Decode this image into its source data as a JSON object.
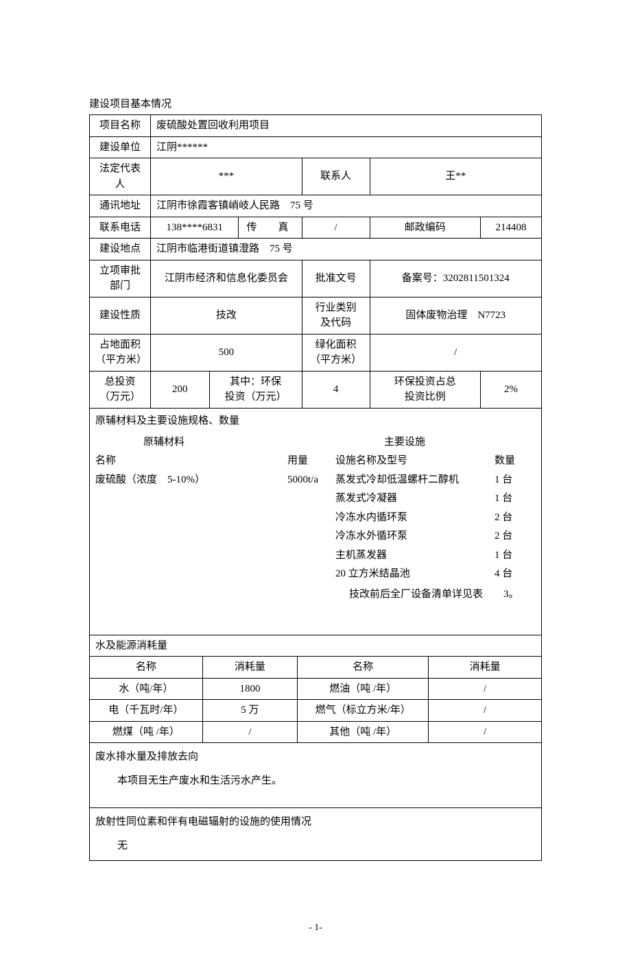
{
  "section_title": "建设项目基本情况",
  "rows": {
    "project_name_label": "项目名称",
    "project_name": "废硫酸处置回收利用项目",
    "builder_label": "建设单位",
    "builder": "江阴******",
    "legal_rep_label": "法定代表人",
    "legal_rep": "***",
    "contact_label": "联系人",
    "contact": "王**",
    "address_label": "通讯地址",
    "address": "江阴市徐霞客镇峭岐人民路　75 号",
    "phone_label": "联系电话",
    "phone": "138****6831",
    "fax_label": "传　真",
    "fax": "/",
    "postcode_label": "邮政编码",
    "postcode": "214408",
    "location_label": "建设地点",
    "location": "江阴市临港街道镇澄路　75 号",
    "approval_dept_label": "立项审批部门",
    "approval_dept": "江阴市经济和信息化委员会",
    "approval_no_label": "批准文号",
    "approval_no": "备案号：3202811501324",
    "nature_label": "建设性质",
    "nature": "技改",
    "industry_label_1": "行业类别",
    "industry_label_2": "及代码",
    "industry": "固体废物治理　N7723",
    "land_area_label_1": "占地面积",
    "land_area_label_2": "（平方米）",
    "land_area": "500",
    "green_area_label_1": "绿化面积",
    "green_area_label_2": "（平方米）",
    "green_area": "/",
    "total_invest_label_1": "总投资",
    "total_invest_label_2": "（万元）",
    "total_invest": "200",
    "env_invest_label_1": "其中：环保",
    "env_invest_label_2": "投资（万元）",
    "env_invest": "4",
    "env_ratio_label_1": "环保投资占总",
    "env_ratio_label_2": "投资比例",
    "env_ratio": "2%"
  },
  "materials": {
    "title": "原辅材料及主要设施规格、数量",
    "header_left": "原辅材料",
    "header_right": "主要设施",
    "col_name": "名称",
    "col_usage": "用量",
    "col_equip": "设施名称及型号",
    "col_qty": "数量",
    "mat_name": "废硫酸（浓度　5-10%）",
    "mat_usage": "5000t/a",
    "equipment": [
      {
        "name": "蒸发式冷却低温螺杆二醇机",
        "qty": "1 台"
      },
      {
        "name": "蒸发式冷凝器",
        "qty": "1 台"
      },
      {
        "name": "冷冻水内循环泵",
        "qty": "2 台"
      },
      {
        "name": "冷冻水外循环泵",
        "qty": "2 台"
      },
      {
        "name": "主机蒸发器",
        "qty": "1 台"
      },
      {
        "name": "20 立方米结晶池",
        "qty": "4 台"
      }
    ],
    "note": "技改前后全厂设备清单详见表　　3。"
  },
  "consumption": {
    "title": "水及能源消耗量",
    "col_name": "名称",
    "col_amount": "消耗量",
    "rows": [
      {
        "n1": "水（吨/年）",
        "v1": "1800",
        "n2": "燃油（吨 /年）",
        "v2": "/"
      },
      {
        "n1": "电（千瓦时/年）",
        "v1": "5 万",
        "n2": "燃气（标立方米/年）",
        "v2": "/"
      },
      {
        "n1": "燃煤（吨 /年）",
        "v1": "/",
        "n2": "其他（吨 /年）",
        "v2": "/"
      }
    ]
  },
  "wastewater": {
    "title": "废水排水量及排放去向",
    "content": "本项目无生产废水和生活污水产生。"
  },
  "radiation": {
    "title": "放射性同位素和伴有电磁辐射的设施的使用情况",
    "content": "无"
  },
  "page_no": "- 1-"
}
